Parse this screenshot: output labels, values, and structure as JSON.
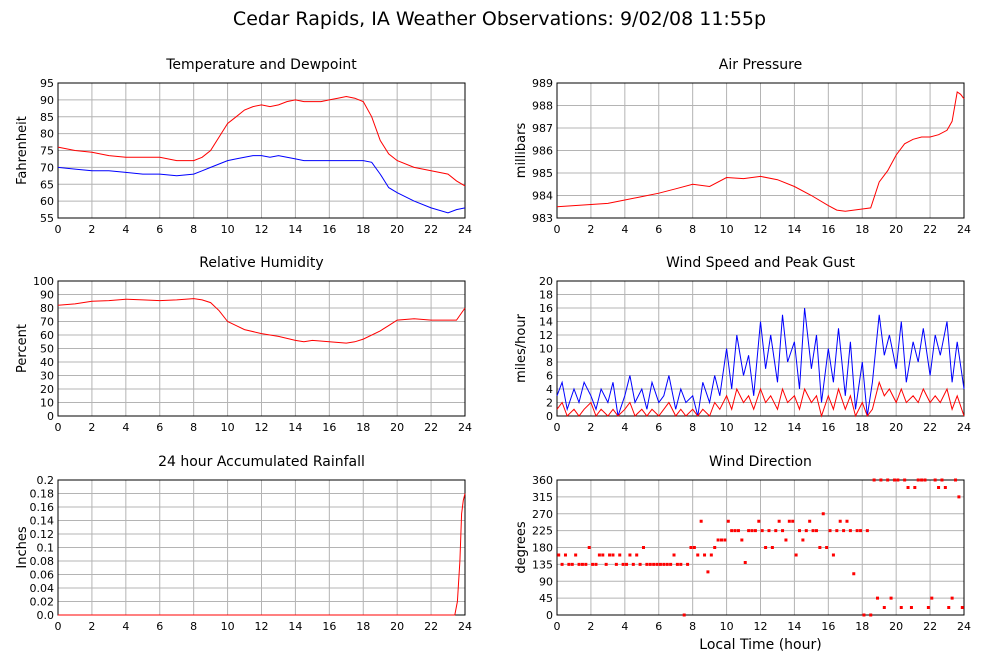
{
  "title": "Cedar Rapids, IA Weather Observations: 9/02/08 11:55p",
  "x_axis_label": "Local Time (hour)",
  "chart_data": [
    {
      "id": "temp",
      "type": "line",
      "title": "Temperature and Dewpoint",
      "xlabel": "",
      "ylabel": "Fahrenheit",
      "xlim": [
        0,
        24
      ],
      "ylim": [
        55,
        95
      ],
      "xticks": [
        0,
        2,
        4,
        6,
        8,
        10,
        12,
        14,
        16,
        18,
        20,
        22,
        24
      ],
      "yticks": [
        55,
        60,
        65,
        70,
        75,
        80,
        85,
        90,
        95
      ],
      "grid": true,
      "series": [
        {
          "color": "#ff0000",
          "x": [
            0,
            1,
            2,
            3,
            4,
            5,
            6,
            7,
            8,
            8.5,
            9,
            9.5,
            10,
            10.5,
            11,
            11.5,
            12,
            12.5,
            13,
            13.5,
            14,
            14.5,
            15,
            15.5,
            16,
            16.5,
            17,
            17.5,
            18,
            18.5,
            19,
            19.5,
            20,
            21,
            22,
            23,
            23.5,
            24
          ],
          "y": [
            76,
            75,
            74.5,
            73.5,
            73,
            73,
            73,
            72,
            72,
            73,
            75,
            79,
            83,
            85,
            87,
            88,
            88.5,
            88,
            88.5,
            89.5,
            90,
            89.5,
            89.5,
            89.5,
            90,
            90.5,
            91,
            90.5,
            89.5,
            85,
            78,
            74,
            72,
            70,
            69,
            68,
            66,
            64.5
          ]
        },
        {
          "color": "#0000ff",
          "x": [
            0,
            1,
            2,
            3,
            4,
            5,
            6,
            7,
            8,
            8.5,
            9,
            9.5,
            10,
            10.5,
            11,
            11.5,
            12,
            12.5,
            13,
            13.5,
            14,
            14.5,
            15,
            15.5,
            16,
            16.5,
            17,
            17.5,
            18,
            18.5,
            19,
            19.5,
            20,
            21,
            22,
            23,
            23.5,
            24
          ],
          "y": [
            70,
            69.5,
            69,
            69,
            68.5,
            68,
            68,
            67.5,
            68,
            69,
            70,
            71,
            72,
            72.5,
            73,
            73.5,
            73.5,
            73,
            73.5,
            73,
            72.5,
            72,
            72,
            72,
            72,
            72,
            72,
            72,
            72,
            71.5,
            68,
            64,
            62.5,
            60,
            58,
            56.5,
            57.5,
            58
          ]
        }
      ]
    },
    {
      "id": "pressure",
      "type": "line",
      "title": "Air Pressure",
      "xlabel": "",
      "ylabel": "millibars",
      "xlim": [
        0,
        24
      ],
      "ylim": [
        983,
        989
      ],
      "xticks": [
        0,
        2,
        4,
        6,
        8,
        10,
        12,
        14,
        16,
        18,
        20,
        22,
        24
      ],
      "yticks": [
        983,
        984,
        985,
        986,
        987,
        988,
        989
      ],
      "grid": true,
      "series": [
        {
          "color": "#ff0000",
          "x": [
            0,
            1,
            2,
            3,
            4,
            5,
            6,
            7,
            8,
            9,
            10,
            11,
            12,
            13,
            14,
            15,
            16,
            16.5,
            17,
            18,
            18.5,
            19,
            19.5,
            20,
            20.5,
            21,
            21.5,
            22,
            22.5,
            23,
            23.3,
            23.6,
            23.8,
            24
          ],
          "y": [
            983.5,
            983.55,
            983.6,
            983.65,
            983.8,
            983.95,
            984.1,
            984.3,
            984.5,
            984.4,
            984.8,
            984.75,
            984.85,
            984.7,
            984.4,
            984.0,
            983.55,
            983.35,
            983.3,
            983.4,
            983.45,
            984.6,
            985.1,
            985.8,
            986.3,
            986.5,
            986.6,
            986.6,
            986.7,
            986.9,
            987.3,
            988.6,
            988.5,
            988.3
          ]
        }
      ]
    },
    {
      "id": "humidity",
      "type": "line",
      "title": "Relative Humidity",
      "xlabel": "",
      "ylabel": "Percent",
      "xlim": [
        0,
        24
      ],
      "ylim": [
        0,
        100
      ],
      "xticks": [
        0,
        2,
        4,
        6,
        8,
        10,
        12,
        14,
        16,
        18,
        20,
        22,
        24
      ],
      "yticks": [
        0,
        10,
        20,
        30,
        40,
        50,
        60,
        70,
        80,
        90,
        100
      ],
      "grid": true,
      "series": [
        {
          "color": "#ff0000",
          "x": [
            0,
            1,
            2,
            3,
            4,
            5,
            6,
            7,
            8,
            8.5,
            9,
            9.5,
            10,
            10.5,
            11,
            12,
            13,
            14,
            14.5,
            15,
            16,
            17,
            17.5,
            18,
            19,
            19.5,
            20,
            21,
            22,
            23,
            23.5,
            24
          ],
          "y": [
            82,
            83,
            85,
            85.5,
            86.5,
            86,
            85.5,
            86,
            87,
            86,
            84,
            78,
            70,
            67,
            64,
            61,
            59,
            56,
            55,
            56,
            55,
            54,
            55,
            57,
            63,
            67,
            71,
            72,
            71,
            71,
            71,
            80
          ]
        }
      ]
    },
    {
      "id": "wind",
      "type": "line",
      "title": "Wind Speed and Peak Gust",
      "xlabel": "",
      "ylabel": "miles/hour",
      "xlim": [
        0,
        24
      ],
      "ylim": [
        0,
        20
      ],
      "xticks": [
        0,
        2,
        4,
        6,
        8,
        10,
        12,
        14,
        16,
        18,
        20,
        22,
        24
      ],
      "yticks": [
        0,
        2,
        4,
        6,
        8,
        10,
        12,
        14,
        16,
        18,
        20
      ],
      "grid": true,
      "series": [
        {
          "color": "#0000ff",
          "x": [
            0,
            0.3,
            0.6,
            1,
            1.3,
            1.6,
            2,
            2.3,
            2.6,
            3,
            3.3,
            3.6,
            4,
            4.3,
            4.6,
            5,
            5.3,
            5.6,
            6,
            6.3,
            6.6,
            7,
            7.3,
            7.6,
            8,
            8.3,
            8.6,
            9,
            9.3,
            9.6,
            10,
            10.3,
            10.6,
            11,
            11.3,
            11.6,
            12,
            12.3,
            12.6,
            13,
            13.3,
            13.6,
            14,
            14.3,
            14.6,
            15,
            15.3,
            15.6,
            16,
            16.3,
            16.6,
            17,
            17.3,
            17.6,
            18,
            18.3,
            18.6,
            19,
            19.3,
            19.6,
            20,
            20.3,
            20.6,
            21,
            21.3,
            21.6,
            22,
            22.3,
            22.6,
            23,
            23.3,
            23.6,
            24
          ],
          "y": [
            3,
            5,
            1,
            4,
            2,
            5,
            3,
            1,
            4,
            2,
            5,
            0,
            3,
            6,
            2,
            4,
            1,
            5,
            2,
            3,
            6,
            1,
            4,
            2,
            3,
            0,
            5,
            2,
            6,
            3,
            10,
            4,
            12,
            6,
            9,
            3,
            14,
            7,
            12,
            5,
            15,
            8,
            11,
            4,
            16,
            7,
            12,
            2,
            10,
            5,
            13,
            3,
            11,
            1,
            8,
            0,
            5,
            15,
            9,
            12,
            7,
            14,
            5,
            11,
            8,
            13,
            6,
            12,
            9,
            14,
            5,
            11,
            4
          ]
        },
        {
          "color": "#ff0000",
          "x": [
            0,
            0.3,
            0.6,
            1,
            1.3,
            1.6,
            2,
            2.3,
            2.6,
            3,
            3.3,
            3.6,
            4,
            4.3,
            4.6,
            5,
            5.3,
            5.6,
            6,
            6.3,
            6.6,
            7,
            7.3,
            7.6,
            8,
            8.3,
            8.6,
            9,
            9.3,
            9.6,
            10,
            10.3,
            10.6,
            11,
            11.3,
            11.6,
            12,
            12.3,
            12.6,
            13,
            13.3,
            13.6,
            14,
            14.3,
            14.6,
            15,
            15.3,
            15.6,
            16,
            16.3,
            16.6,
            17,
            17.3,
            17.6,
            18,
            18.3,
            18.6,
            19,
            19.3,
            19.6,
            20,
            20.3,
            20.6,
            21,
            21.3,
            21.6,
            22,
            22.3,
            22.6,
            23,
            23.3,
            23.6,
            24
          ],
          "y": [
            1,
            2,
            0,
            1,
            0,
            1,
            2,
            0,
            1,
            0,
            1,
            0,
            1,
            2,
            0,
            1,
            0,
            1,
            0,
            1,
            2,
            0,
            1,
            0,
            1,
            0,
            1,
            0,
            2,
            1,
            3,
            1,
            4,
            2,
            3,
            1,
            4,
            2,
            3,
            1,
            4,
            2,
            3,
            1,
            4,
            2,
            3,
            0,
            3,
            1,
            4,
            1,
            3,
            0,
            2,
            0,
            1,
            5,
            3,
            4,
            2,
            4,
            2,
            3,
            2,
            4,
            2,
            3,
            2,
            4,
            1,
            3,
            0
          ]
        }
      ]
    },
    {
      "id": "rain",
      "type": "line",
      "title": "24 hour Accumulated Rainfall",
      "xlabel": "",
      "ylabel": "Inches",
      "xlim": [
        0,
        24
      ],
      "ylim": [
        0,
        0.2
      ],
      "xticks": [
        0,
        2,
        4,
        6,
        8,
        10,
        12,
        14,
        16,
        18,
        20,
        22,
        24
      ],
      "yticks": [
        "0.0",
        "0.02",
        "0.04",
        "0.06",
        "0.08",
        "0.1",
        "0.12",
        "0.14",
        "0.16",
        "0.18",
        "0.2"
      ],
      "grid": true,
      "series": [
        {
          "color": "#ff0000",
          "x": [
            0,
            23.4,
            23.55,
            23.7,
            23.8,
            23.9,
            24
          ],
          "y": [
            0,
            0,
            0.02,
            0.08,
            0.15,
            0.17,
            0.18
          ]
        }
      ]
    },
    {
      "id": "direction",
      "type": "scatter",
      "title": "Wind Direction",
      "xlabel": "Local Time (hour)",
      "ylabel": "degrees",
      "xlim": [
        0,
        24
      ],
      "ylim": [
        0,
        360
      ],
      "xticks": [
        0,
        2,
        4,
        6,
        8,
        10,
        12,
        14,
        16,
        18,
        20,
        22,
        24
      ],
      "yticks": [
        0,
        45,
        90,
        135,
        180,
        225,
        270,
        315,
        360
      ],
      "grid": true,
      "series": [
        {
          "color": "#ff0000",
          "x": [
            0.1,
            0.3,
            0.5,
            0.7,
            0.9,
            1.1,
            1.3,
            1.5,
            1.7,
            1.9,
            2.1,
            2.3,
            2.5,
            2.7,
            2.9,
            3.1,
            3.3,
            3.5,
            3.7,
            3.9,
            4.1,
            4.3,
            4.5,
            4.7,
            4.9,
            5.1,
            5.3,
            5.5,
            5.7,
            5.9,
            6.1,
            6.3,
            6.5,
            6.7,
            6.9,
            7.1,
            7.3,
            7.5,
            7.7,
            7.9,
            8.1,
            8.3,
            8.5,
            8.7,
            8.9,
            9.1,
            9.3,
            9.5,
            9.7,
            9.9,
            10.1,
            10.3,
            10.5,
            10.7,
            10.9,
            11.1,
            11.3,
            11.5,
            11.7,
            11.9,
            12.1,
            12.3,
            12.5,
            12.7,
            12.9,
            13.1,
            13.3,
            13.5,
            13.7,
            13.9,
            14.1,
            14.3,
            14.5,
            14.7,
            14.9,
            15.1,
            15.3,
            15.5,
            15.7,
            15.9,
            16.1,
            16.3,
            16.5,
            16.7,
            16.9,
            17.1,
            17.3,
            17.5,
            17.7,
            17.9,
            18.1,
            18.3,
            18.5,
            18.7,
            18.9,
            19.1,
            19.3,
            19.5,
            19.7,
            19.9,
            20.1,
            20.3,
            20.5,
            20.7,
            20.9,
            21.1,
            21.3,
            21.5,
            21.7,
            21.9,
            22.1,
            22.3,
            22.5,
            22.7,
            22.9,
            23.1,
            23.3,
            23.5,
            23.7,
            23.9
          ],
          "y": [
            160,
            135,
            160,
            135,
            135,
            160,
            135,
            135,
            135,
            180,
            135,
            135,
            160,
            160,
            135,
            160,
            160,
            135,
            160,
            135,
            135,
            160,
            135,
            160,
            135,
            180,
            135,
            135,
            135,
            135,
            135,
            135,
            135,
            135,
            160,
            135,
            135,
            0,
            135,
            180,
            180,
            160,
            250,
            160,
            115,
            160,
            180,
            200,
            200,
            200,
            250,
            225,
            225,
            225,
            200,
            140,
            225,
            225,
            225,
            250,
            225,
            180,
            225,
            180,
            225,
            250,
            225,
            200,
            250,
            250,
            160,
            225,
            200,
            225,
            250,
            225,
            225,
            180,
            270,
            180,
            225,
            160,
            225,
            250,
            225,
            250,
            225,
            110,
            225,
            225,
            0,
            225,
            0,
            360,
            45,
            360,
            20,
            360,
            45,
            360,
            360,
            20,
            360,
            340,
            20,
            340,
            360,
            360,
            360,
            20,
            45,
            360,
            340,
            360,
            340,
            20,
            45,
            360,
            315,
            20
          ]
        }
      ]
    }
  ]
}
